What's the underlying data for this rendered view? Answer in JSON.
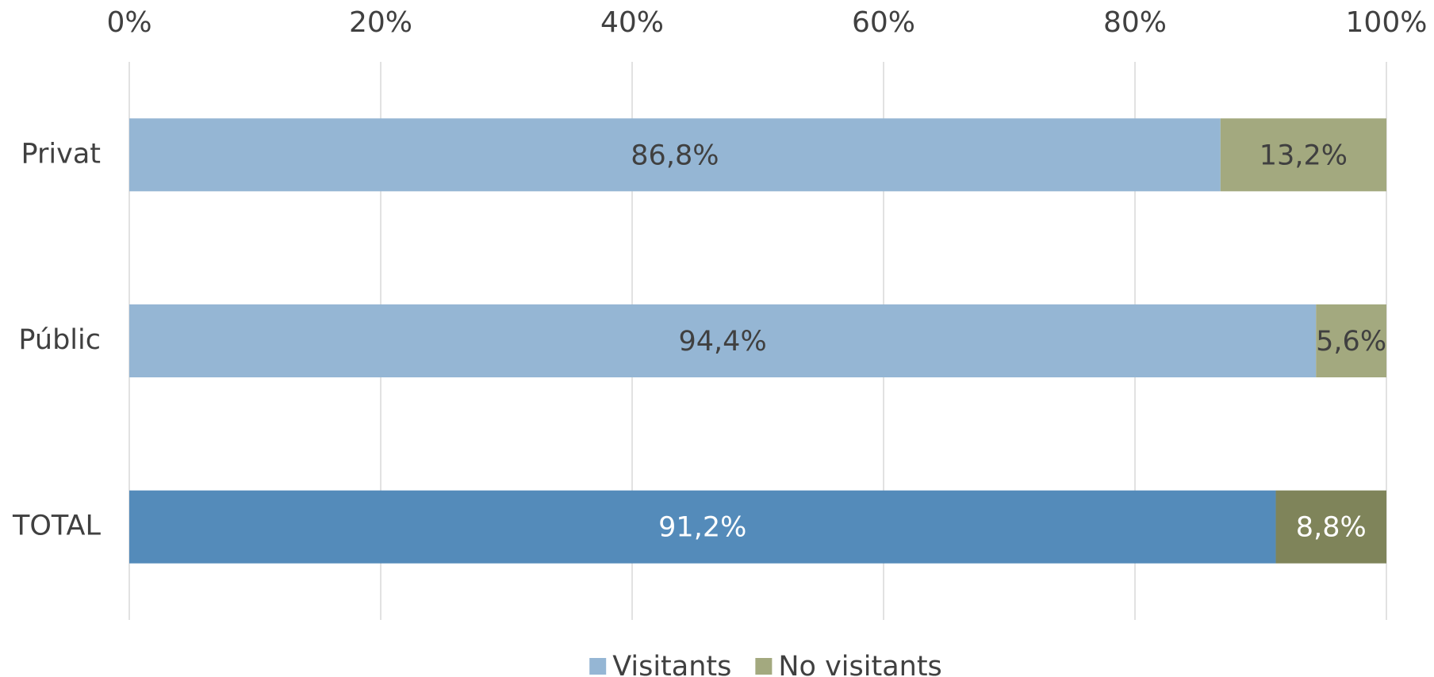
{
  "chart_data": {
    "type": "stacked_barh",
    "categories": [
      "Privat",
      "Públic",
      "TOTAL"
    ],
    "series": [
      {
        "name": "Visitants",
        "color": "#95b6d4",
        "colors": [
          "#95b6d4",
          "#95b6d4",
          "#548bba"
        ],
        "values": [
          86.8,
          94.4,
          91.2
        ],
        "value_labels": [
          "86,8%",
          "94,4%",
          "91,2%"
        ]
      },
      {
        "name": "No visitants",
        "color": "#a3a97f",
        "colors": [
          "#a3a97f",
          "#a3a97f",
          "#7f845a"
        ],
        "values": [
          13.2,
          5.6,
          8.8
        ],
        "value_labels": [
          "13,2%",
          "5,6%",
          "8,8%"
        ]
      }
    ],
    "xlim": [
      0,
      100
    ],
    "xticks": [
      {
        "value": 0,
        "label": "0%"
      },
      {
        "value": 20,
        "label": "20%"
      },
      {
        "value": 40,
        "label": "40%"
      },
      {
        "value": 60,
        "label": "60%"
      },
      {
        "value": 80,
        "label": "80%"
      },
      {
        "value": 100,
        "label": "100%"
      }
    ],
    "grid": true,
    "legend": "bottom"
  }
}
